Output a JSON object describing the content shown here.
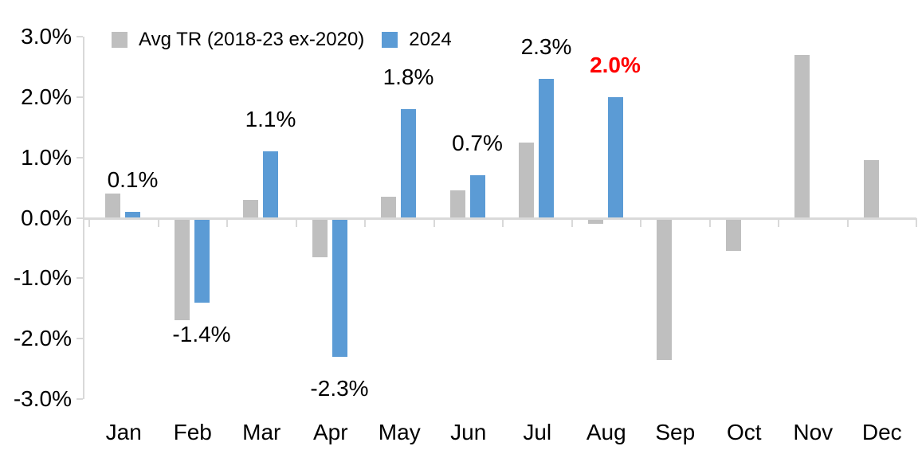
{
  "chart_data": {
    "type": "bar",
    "title": "",
    "xlabel": "",
    "ylabel": "",
    "categories": [
      "Jan",
      "Feb",
      "Mar",
      "Apr",
      "May",
      "Jun",
      "Jul",
      "Aug",
      "Sep",
      "Oct",
      "Nov",
      "Dec"
    ],
    "series": [
      {
        "name": "Avg TR (2018-23 ex-2020)",
        "color": "#BFBFBF",
        "values": [
          0.4,
          -1.7,
          0.3,
          -0.65,
          0.35,
          0.45,
          1.25,
          -0.1,
          -2.35,
          -0.55,
          2.7,
          0.95
        ]
      },
      {
        "name": "2024",
        "color": "#5B9BD5",
        "values": [
          0.1,
          -1.4,
          1.1,
          -2.3,
          1.8,
          0.7,
          2.3,
          2.0,
          null,
          null,
          null,
          null
        ],
        "data_labels": [
          "0.1%",
          "-1.4%",
          "1.1%",
          "-2.3%",
          "1.8%",
          "0.7%",
          "2.3%",
          "2.0%",
          null,
          null,
          null,
          null
        ],
        "data_label_colors": [
          "#000000",
          "#000000",
          "#000000",
          "#000000",
          "#000000",
          "#000000",
          "#000000",
          "#FF0000",
          null,
          null,
          null,
          null
        ],
        "data_label_bold": [
          false,
          false,
          false,
          false,
          false,
          false,
          false,
          true,
          null,
          null,
          null,
          null
        ]
      }
    ],
    "y_axis": {
      "range": [
        -3,
        3
      ],
      "ticks": [
        {
          "label": "3.0%",
          "value": 3
        },
        {
          "label": "2.0%",
          "value": 2
        },
        {
          "label": "1.0%",
          "value": 1
        },
        {
          "label": "0.0%",
          "value": 0
        },
        {
          "label": "-1.0%",
          "value": -1
        },
        {
          "label": "-2.0%",
          "value": -2
        },
        {
          "label": "-3.0%",
          "value": -3
        }
      ]
    },
    "grid": false,
    "legend_position": "top-left",
    "axis_color": "#D9D9D9",
    "background_color": "#FFFFFF",
    "text_color": "#000000",
    "highlight_color": "#FF0000"
  }
}
